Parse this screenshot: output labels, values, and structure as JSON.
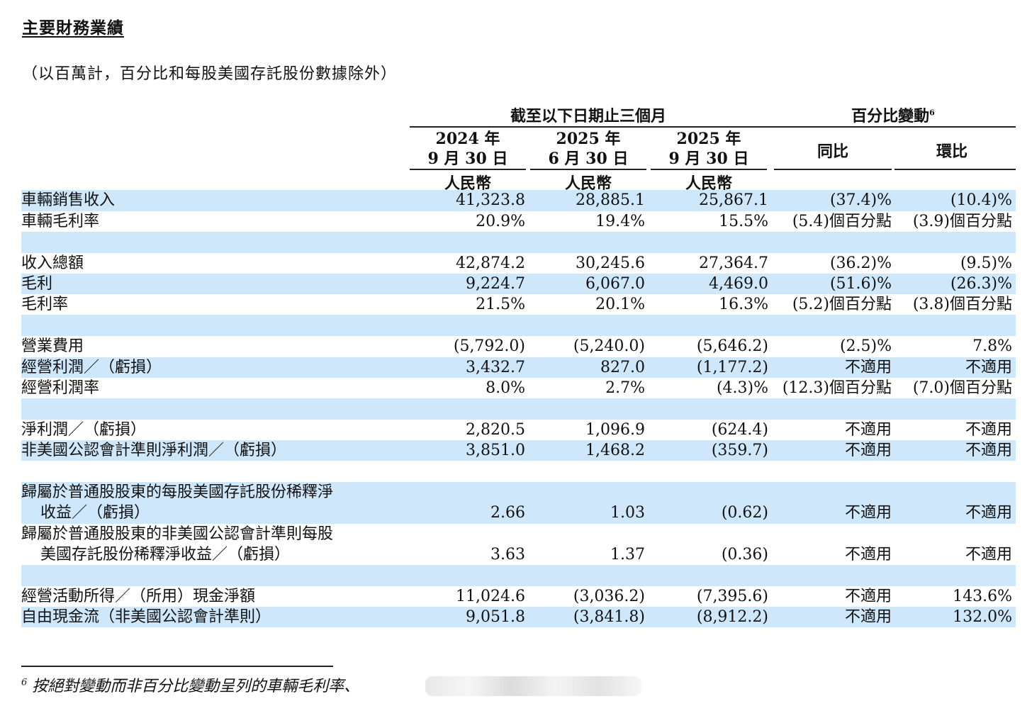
{
  "title": "主要財務業績",
  "subtitle": "（以百萬計，百分比和每股美國存託股份數據除外）",
  "header": {
    "group_period": "截至以下日期止三個月",
    "group_change": "百分比變動",
    "group_change_note": "6",
    "cols": [
      {
        "line1": "2024 年",
        "line2": "9 月 30 日",
        "currency": "人民幣"
      },
      {
        "line1": "2025 年",
        "line2": "6 月 30 日",
        "currency": "人民幣"
      },
      {
        "line1": "2025 年",
        "line2": "9 月 30 日",
        "currency": "人民幣"
      }
    ],
    "yoy": "同比",
    "qoq": "環比"
  },
  "rows": [
    {
      "label": "車輛銷售收入",
      "v1": "41,323.8",
      "v2": "28,885.1",
      "v3": "25,867.1",
      "yoy": "(37.4)%",
      "qoq": "(10.4)%"
    },
    {
      "label": "車輛毛利率",
      "v1": "20.9%",
      "v2": "19.4%",
      "v3": "15.5%",
      "yoy": "(5.4)個百分點",
      "qoq": "(3.9)個百分點"
    },
    {
      "label": "收入總額",
      "v1": "42,874.2",
      "v2": "30,245.6",
      "v3": "27,364.7",
      "yoy": "(36.2)%",
      "qoq": "(9.5)%"
    },
    {
      "label": "毛利",
      "v1": "9,224.7",
      "v2": "6,067.0",
      "v3": "4,469.0",
      "yoy": "(51.6)%",
      "qoq": "(26.3)%"
    },
    {
      "label": "毛利率",
      "v1": "21.5%",
      "v2": "20.1%",
      "v3": "16.3%",
      "yoy": "(5.2)個百分點",
      "qoq": "(3.8)個百分點"
    },
    {
      "label": "營業費用",
      "v1": "(5,792.0)",
      "v2": "(5,240.0)",
      "v3": "(5,646.2)",
      "yoy": "(2.5)%",
      "qoq": "7.8%"
    },
    {
      "label": "經營利潤／（虧損）",
      "v1": "3,432.7",
      "v2": "827.0",
      "v3": "(1,177.2)",
      "yoy": "不適用",
      "qoq": "不適用"
    },
    {
      "label": "經營利潤率",
      "v1": "8.0%",
      "v2": "2.7%",
      "v3": "(4.3)%",
      "yoy": "(12.3)個百分點",
      "qoq": "(7.0)個百分點"
    },
    {
      "label": "淨利潤／（虧損）",
      "v1": "2,820.5",
      "v2": "1,096.9",
      "v3": "(624.4)",
      "yoy": "不適用",
      "qoq": "不適用"
    },
    {
      "label": "非美國公認會計準則淨利潤／（虧損）",
      "v1": "3,851.0",
      "v2": "1,468.2",
      "v3": "(359.7)",
      "yoy": "不適用",
      "qoq": "不適用"
    },
    {
      "label": "歸屬於普通股股東的每股美國存託股份稀釋淨",
      "label2": "收益／（虧損）",
      "v1": "2.66",
      "v2": "1.03",
      "v3": "(0.62)",
      "yoy": "不適用",
      "qoq": "不適用"
    },
    {
      "label": "歸屬於普通股股東的非美國公認會計準則每股",
      "label2": "美國存託股份稀釋淨收益／（虧損）",
      "v1": "3.63",
      "v2": "1.37",
      "v3": "(0.36)",
      "yoy": "不適用",
      "qoq": "不適用"
    },
    {
      "label": "經營活動所得／（所用）現金淨額",
      "v1": "11,024.6",
      "v2": "(3,036.2)",
      "v3": "(7,395.6)",
      "yoy": "不適用",
      "qoq": "143.6%"
    },
    {
      "label": "自由現金流（非美國公認會計準則）",
      "v1": "9,051.8",
      "v2": "(3,841.8)",
      "v3": "(8,912.2)",
      "yoy": "不適用",
      "qoq": "132.0%"
    }
  ],
  "footnote": {
    "marker": "6",
    "text": "按絕對變動而非百分比變動呈列的車輛毛利率、"
  }
}
